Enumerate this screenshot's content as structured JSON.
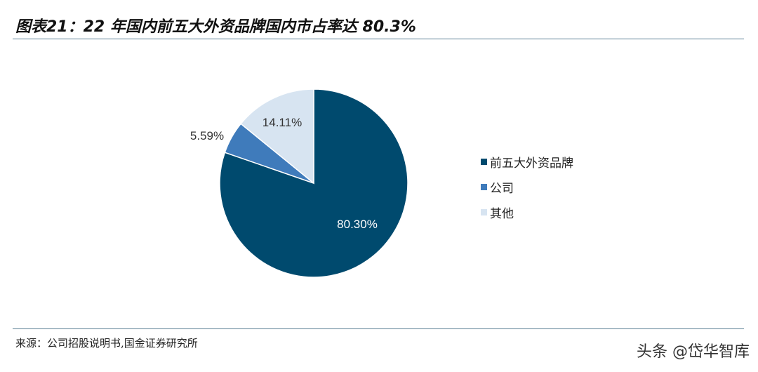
{
  "title": "图表21：22 年国内前五大外资品牌国内市占率达 80.3%",
  "source": "来源：公司招股说明书,国金证券研究所",
  "watermark": "头条 @岱华智库",
  "chart_data": {
    "type": "pie",
    "title": "图表21：22 年国内前五大外资品牌国内市占率达 80.3%",
    "slices": [
      {
        "label": "前五大外资品牌",
        "value": 80.3,
        "display": "80.30%",
        "color": "#004a6e"
      },
      {
        "label": "公司",
        "value": 5.59,
        "display": "5.59%",
        "color": "#3f7bbb"
      },
      {
        "label": "其他",
        "value": 14.11,
        "display": "14.11%",
        "color": "#d7e4f1"
      }
    ],
    "start": "12 o'clock, clockwise",
    "legend": "right"
  }
}
